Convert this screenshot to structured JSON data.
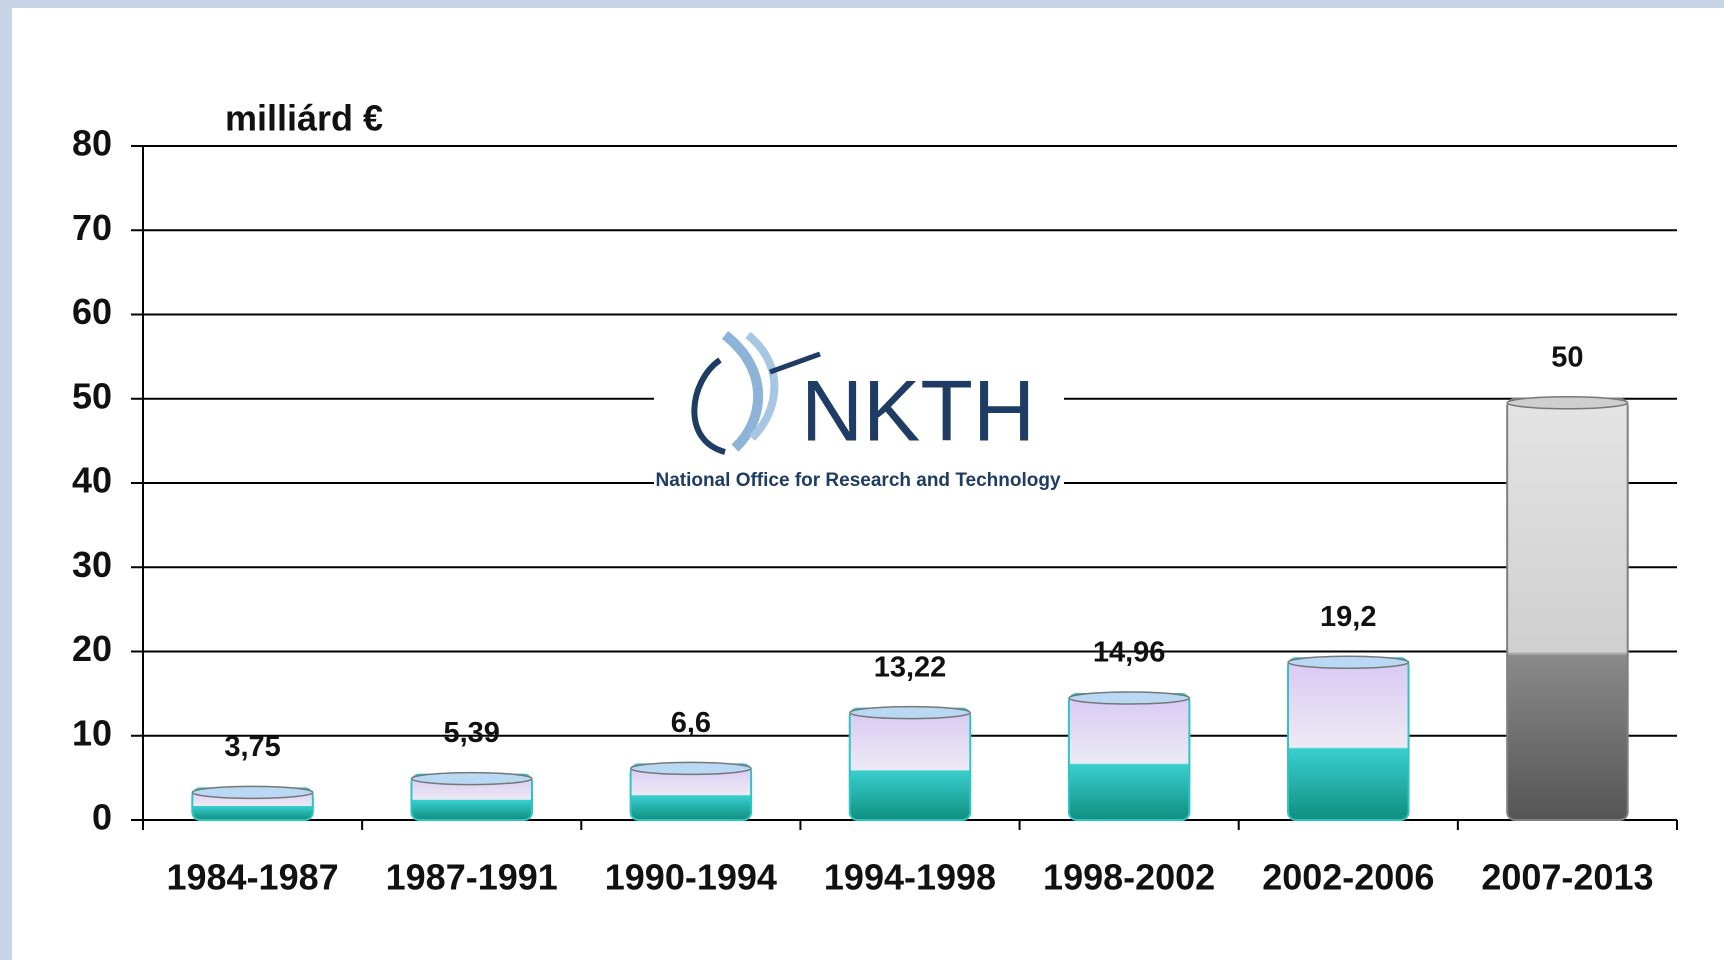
{
  "chart_data": {
    "type": "bar",
    "axis_label": "milliárd €",
    "annotations": [
      "NKTH",
      "National Office for Research and Technology"
    ],
    "categories": [
      "1984-1987",
      "1987-1991",
      "1990-1994",
      "1994-1998",
      "1998-2002",
      "2002-2006",
      "2007-2013"
    ],
    "values": [
      3.75,
      5.39,
      6.6,
      13.22,
      14.96,
      19.2,
      50
    ],
    "value_labels": [
      "3,75",
      "5,39",
      "6,6",
      "13,22",
      "14,96",
      "19,2",
      "50"
    ],
    "colors": [
      "#2fc4c4",
      "#2fc4c4",
      "#2fc4c4",
      "#2fc4c4",
      "#2fc4c4",
      "#2fc4c4",
      "#808080"
    ],
    "ylim": [
      0,
      80
    ],
    "yticks": [
      0,
      10,
      20,
      30,
      40,
      50,
      60,
      70,
      80
    ],
    "grid": true
  }
}
